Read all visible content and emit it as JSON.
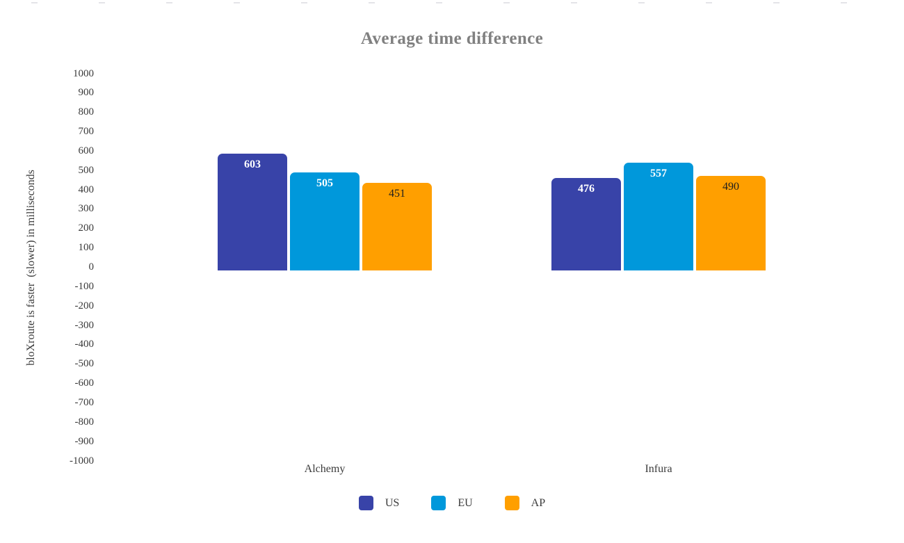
{
  "chart_data": {
    "type": "bar",
    "title": "Average time difference",
    "ylabel": "bloXroute is faster  (slower) in milliseconds",
    "xlabel": "",
    "categories": [
      "Alchemy",
      "Infura"
    ],
    "series": [
      {
        "name": "US",
        "color": "#3843a8",
        "label_color": "#ffffff",
        "label_bold": true,
        "values": [
          603,
          476
        ]
      },
      {
        "name": "EU",
        "color": "#0098db",
        "label_color": "#ffffff",
        "label_bold": true,
        "values": [
          505,
          557
        ]
      },
      {
        "name": "AP",
        "color": "#ff9f00",
        "label_color": "#1f1f1f",
        "label_bold": false,
        "values": [
          451,
          490
        ]
      }
    ],
    "ylim": [
      -1000,
      1000
    ],
    "ytick_step": 100,
    "grid": false,
    "legend_position": "bottom",
    "colors": {
      "title_text": "#808080",
      "axis_text": "#3a3a3a"
    }
  }
}
